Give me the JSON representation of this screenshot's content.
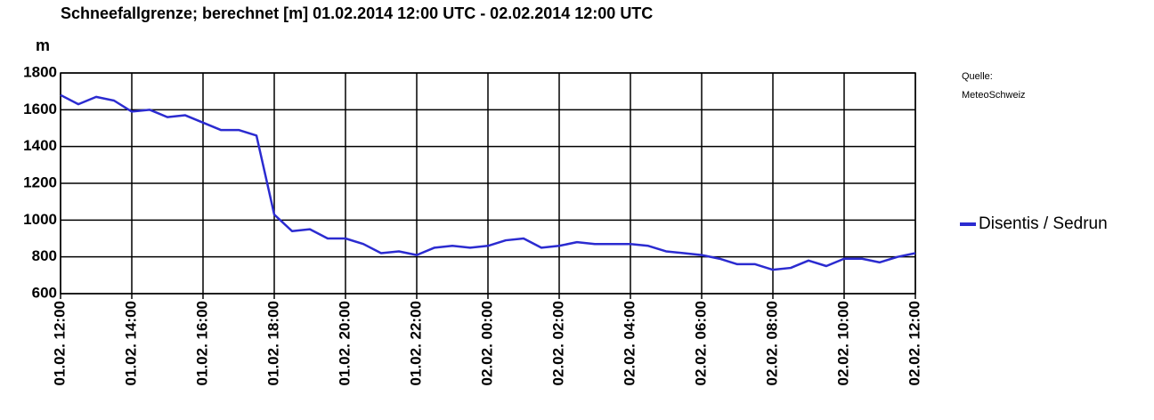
{
  "chart_data": {
    "type": "line",
    "title": "Schneefallgrenze; berechnet [m]  01.02.2014 12:00 UTC - 02.02.2014 12:00 UTC",
    "y_label": "m",
    "annotations": [
      "Quelle:",
      "MeteoSchweiz"
    ],
    "x": [
      "01.02. 12:00",
      "01.02. 12:30",
      "01.02. 13:00",
      "01.02. 13:30",
      "01.02. 14:00",
      "01.02. 14:30",
      "01.02. 15:00",
      "01.02. 15:30",
      "01.02. 16:00",
      "01.02. 16:30",
      "01.02. 17:00",
      "01.02. 17:30",
      "01.02. 18:00",
      "01.02. 18:30",
      "01.02. 19:00",
      "01.02. 19:30",
      "01.02. 20:00",
      "01.02. 20:30",
      "01.02. 21:00",
      "01.02. 21:30",
      "01.02. 22:00",
      "01.02. 22:30",
      "01.02. 23:00",
      "01.02. 23:30",
      "02.02. 00:00",
      "02.02. 00:30",
      "02.02. 01:00",
      "02.02. 01:30",
      "02.02. 02:00",
      "02.02. 02:30",
      "02.02. 03:00",
      "02.02. 03:30",
      "02.02. 04:00",
      "02.02. 04:30",
      "02.02. 05:00",
      "02.02. 05:30",
      "02.02. 06:00",
      "02.02. 06:30",
      "02.02. 07:00",
      "02.02. 07:30",
      "02.02. 08:00",
      "02.02. 08:30",
      "02.02. 09:00",
      "02.02. 09:30",
      "02.02. 10:00",
      "02.02. 10:30",
      "02.02. 11:00",
      "02.02. 11:30",
      "02.02. 12:00"
    ],
    "series": [
      {
        "name": "Disentis / Sedrun",
        "color": "#2b2bd0",
        "values": [
          1680,
          1630,
          1670,
          1650,
          1590,
          1600,
          1560,
          1570,
          1530,
          1490,
          1490,
          1460,
          1030,
          940,
          950,
          900,
          900,
          870,
          820,
          830,
          810,
          850,
          860,
          850,
          860,
          890,
          900,
          850,
          860,
          880,
          870,
          870,
          870,
          860,
          830,
          820,
          810,
          790,
          760,
          760,
          730,
          740,
          780,
          750,
          790,
          790,
          770,
          800,
          820
        ]
      }
    ],
    "xlim": [
      "01.02. 12:00",
      "02.02. 12:00"
    ],
    "xticks": [
      "01.02. 12:00",
      "01.02. 14:00",
      "01.02. 16:00",
      "01.02. 18:00",
      "01.02. 20:00",
      "01.02. 22:00",
      "02.02. 00:00",
      "02.02. 02:00",
      "02.02. 04:00",
      "02.02. 06:00",
      "02.02. 08:00",
      "02.02. 10:00",
      "02.02. 12:00"
    ],
    "ylim": [
      600,
      1800
    ],
    "yticks": [
      600,
      800,
      1000,
      1200,
      1400,
      1600,
      1800
    ],
    "grid": true
  }
}
